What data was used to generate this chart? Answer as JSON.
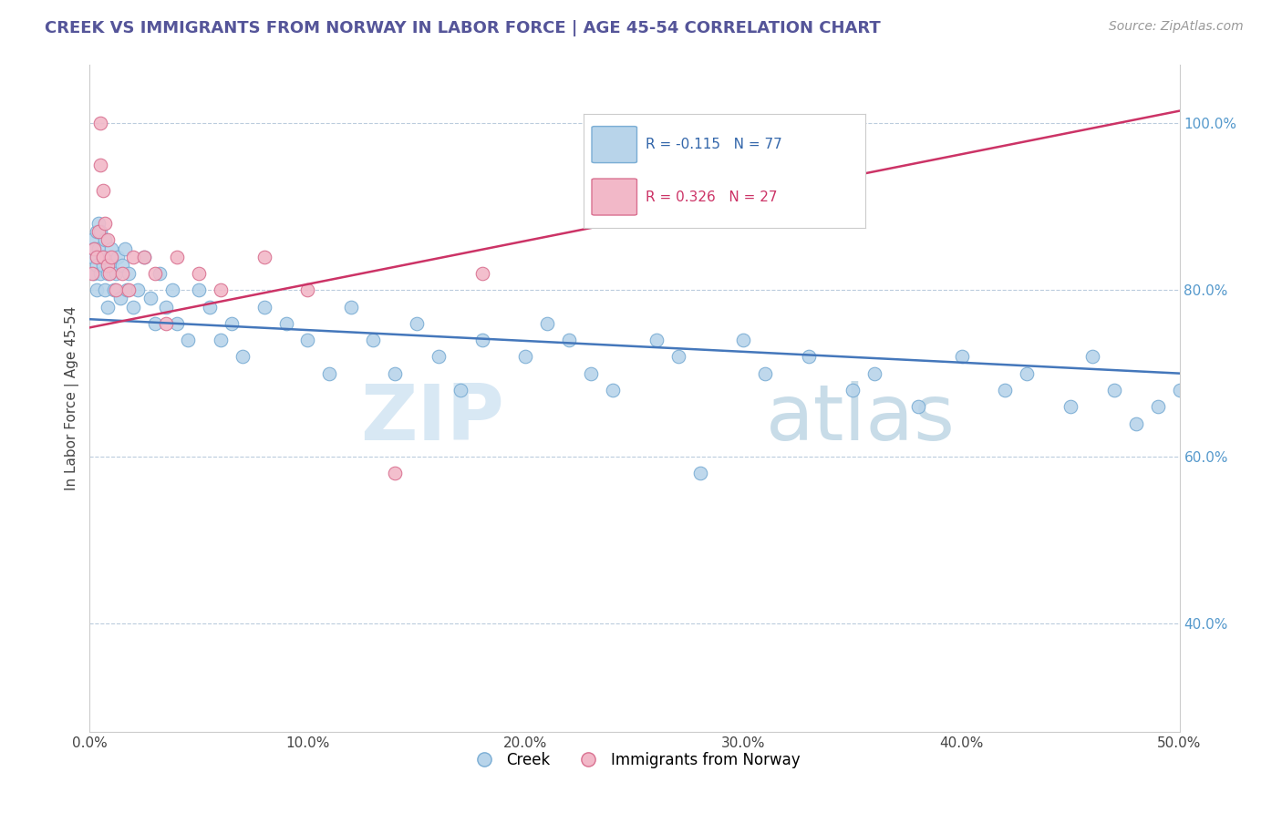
{
  "title": "CREEK VS IMMIGRANTS FROM NORWAY IN LABOR FORCE | AGE 45-54 CORRELATION CHART",
  "source_text": "Source: ZipAtlas.com",
  "ylabel": "In Labor Force | Age 45-54",
  "xlim": [
    0.0,
    0.5
  ],
  "ylim": [
    0.27,
    1.07
  ],
  "xtick_vals": [
    0.0,
    0.1,
    0.2,
    0.3,
    0.4,
    0.5
  ],
  "xtick_labels": [
    "0.0%",
    "10.0%",
    "20.0%",
    "30.0%",
    "40.0%",
    "50.0%"
  ],
  "ytick_vals": [
    0.4,
    0.6,
    0.8,
    1.0
  ],
  "ytick_labels": [
    "40.0%",
    "60.0%",
    "80.0%",
    "100.0%"
  ],
  "creek_color": "#b8d4ea",
  "creek_edge_color": "#7aadd4",
  "norway_color": "#f2b8c8",
  "norway_edge_color": "#d97090",
  "creek_line_color": "#4477bb",
  "norway_line_color": "#cc3366",
  "watermark_zip": "ZIP",
  "watermark_atlas": "atlas",
  "watermark_color": "#d8e8f4",
  "creek_R": -0.115,
  "creek_N": 77,
  "norway_R": 0.326,
  "norway_N": 27,
  "creek_line_x0": 0.0,
  "creek_line_y0": 0.765,
  "creek_line_x1": 0.5,
  "creek_line_y1": 0.7,
  "norway_line_x0": 0.0,
  "norway_line_y0": 0.755,
  "norway_line_x1": 0.5,
  "norway_line_y1": 1.015,
  "creek_scatter_x": [
    0.001,
    0.001,
    0.002,
    0.002,
    0.003,
    0.003,
    0.003,
    0.004,
    0.004,
    0.005,
    0.005,
    0.006,
    0.006,
    0.007,
    0.007,
    0.008,
    0.008,
    0.009,
    0.01,
    0.01,
    0.011,
    0.012,
    0.013,
    0.014,
    0.015,
    0.016,
    0.017,
    0.018,
    0.02,
    0.022,
    0.025,
    0.028,
    0.03,
    0.032,
    0.035,
    0.038,
    0.04,
    0.045,
    0.05,
    0.055,
    0.06,
    0.065,
    0.07,
    0.08,
    0.09,
    0.1,
    0.11,
    0.12,
    0.13,
    0.14,
    0.15,
    0.16,
    0.17,
    0.18,
    0.2,
    0.21,
    0.22,
    0.23,
    0.24,
    0.26,
    0.27,
    0.28,
    0.3,
    0.31,
    0.33,
    0.35,
    0.36,
    0.38,
    0.4,
    0.42,
    0.43,
    0.45,
    0.46,
    0.47,
    0.48,
    0.49,
    0.5
  ],
  "creek_scatter_y": [
    0.84,
    0.86,
    0.82,
    0.85,
    0.8,
    0.83,
    0.87,
    0.85,
    0.88,
    0.82,
    0.87,
    0.83,
    0.84,
    0.8,
    0.86,
    0.82,
    0.78,
    0.84,
    0.83,
    0.85,
    0.8,
    0.82,
    0.84,
    0.79,
    0.83,
    0.85,
    0.8,
    0.82,
    0.78,
    0.8,
    0.84,
    0.79,
    0.76,
    0.82,
    0.78,
    0.8,
    0.76,
    0.74,
    0.8,
    0.78,
    0.74,
    0.76,
    0.72,
    0.78,
    0.76,
    0.74,
    0.7,
    0.78,
    0.74,
    0.7,
    0.76,
    0.72,
    0.68,
    0.74,
    0.72,
    0.76,
    0.74,
    0.7,
    0.68,
    0.74,
    0.72,
    0.58,
    0.74,
    0.7,
    0.72,
    0.68,
    0.7,
    0.66,
    0.72,
    0.68,
    0.7,
    0.66,
    0.72,
    0.68,
    0.64,
    0.66,
    0.68
  ],
  "norway_scatter_x": [
    0.001,
    0.002,
    0.003,
    0.004,
    0.005,
    0.005,
    0.006,
    0.006,
    0.007,
    0.008,
    0.008,
    0.009,
    0.01,
    0.012,
    0.015,
    0.018,
    0.02,
    0.025,
    0.03,
    0.035,
    0.04,
    0.05,
    0.06,
    0.08,
    0.1,
    0.14,
    0.18
  ],
  "norway_scatter_y": [
    0.82,
    0.85,
    0.84,
    0.87,
    1.0,
    0.95,
    0.84,
    0.92,
    0.88,
    0.83,
    0.86,
    0.82,
    0.84,
    0.8,
    0.82,
    0.8,
    0.84,
    0.84,
    0.82,
    0.76,
    0.84,
    0.82,
    0.8,
    0.84,
    0.8,
    0.58,
    0.82
  ]
}
